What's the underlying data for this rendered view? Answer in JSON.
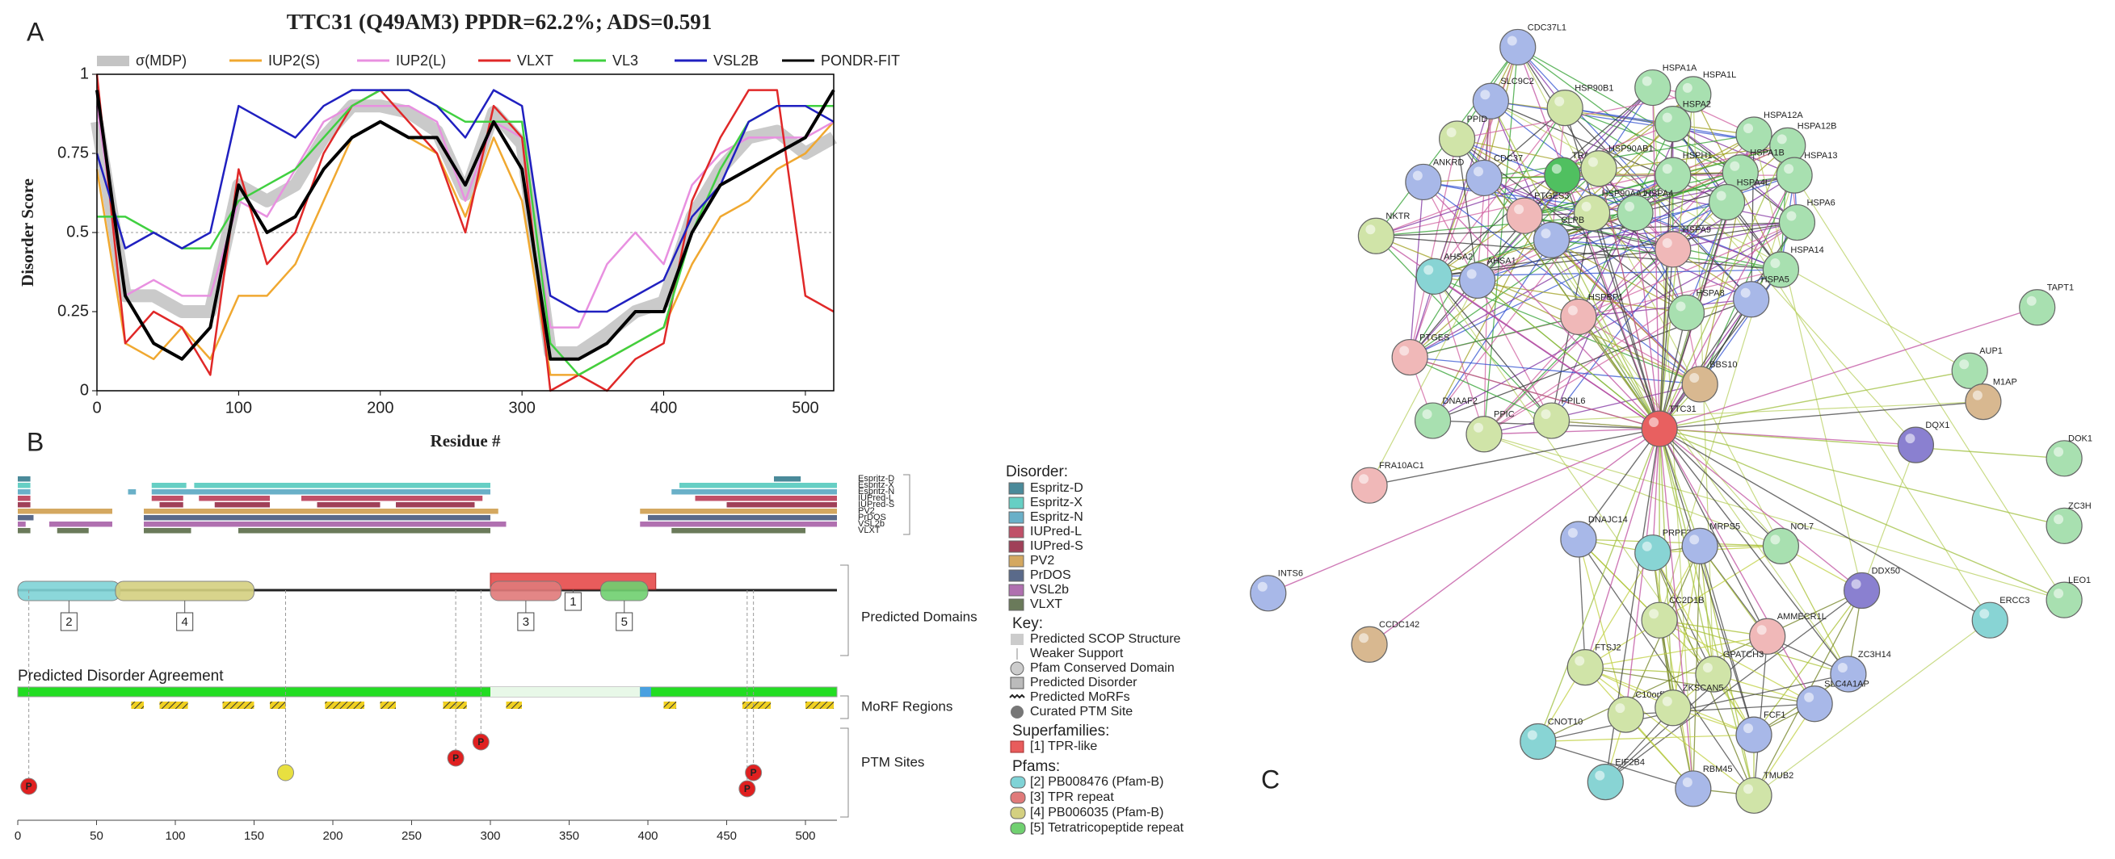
{
  "chart_data": {
    "type": "line",
    "title": "TTC31 (Q49AM3) PPDR=62.2%; ADS=0.591",
    "xlabel": "Residue #",
    "ylabel": "Disorder Score",
    "x": [
      0,
      20,
      40,
      60,
      80,
      100,
      120,
      140,
      160,
      180,
      200,
      220,
      240,
      260,
      280,
      300,
      320,
      340,
      360,
      380,
      400,
      420,
      440,
      460,
      480,
      500,
      520
    ],
    "xlim": [
      0,
      520
    ],
    "ylim": [
      0,
      1
    ],
    "xticks": [
      0,
      100,
      200,
      300,
      400,
      500
    ],
    "yticks": [
      0,
      0.25,
      0.5,
      0.75,
      1
    ],
    "reference_line": 0.5,
    "series": [
      {
        "name": "σ(MDP)",
        "color": "#c4c4c4",
        "band": true,
        "values": [
          0.85,
          0.3,
          0.3,
          0.25,
          0.25,
          0.65,
          0.6,
          0.65,
          0.8,
          0.9,
          0.9,
          0.88,
          0.82,
          0.62,
          0.88,
          0.78,
          0.12,
          0.12,
          0.18,
          0.25,
          0.28,
          0.55,
          0.7,
          0.8,
          0.82,
          0.75,
          0.8
        ]
      },
      {
        "name": "IUP2(S)",
        "color": "#f0a830",
        "values": [
          0.7,
          0.15,
          0.1,
          0.2,
          0.1,
          0.3,
          0.3,
          0.4,
          0.6,
          0.8,
          0.85,
          0.8,
          0.75,
          0.55,
          0.8,
          0.6,
          0.05,
          0.05,
          0.1,
          0.15,
          0.2,
          0.4,
          0.55,
          0.6,
          0.7,
          0.75,
          0.85
        ]
      },
      {
        "name": "IUP2(L)",
        "color": "#e890e0",
        "values": [
          0.9,
          0.3,
          0.35,
          0.3,
          0.3,
          0.6,
          0.55,
          0.7,
          0.85,
          0.9,
          0.9,
          0.9,
          0.85,
          0.6,
          0.85,
          0.8,
          0.2,
          0.2,
          0.4,
          0.5,
          0.4,
          0.65,
          0.75,
          0.8,
          0.8,
          0.8,
          0.85
        ]
      },
      {
        "name": "VLXT",
        "color": "#e02828",
        "values": [
          1,
          0.15,
          0.25,
          0.2,
          0.05,
          0.7,
          0.4,
          0.5,
          0.75,
          0.9,
          0.95,
          0.85,
          0.75,
          0.5,
          0.9,
          0.8,
          0,
          0.05,
          0,
          0.1,
          0.15,
          0.6,
          0.8,
          0.95,
          0.95,
          0.3,
          0.25
        ]
      },
      {
        "name": "VL3",
        "color": "#40d040",
        "values": [
          0.55,
          0.55,
          0.5,
          0.45,
          0.45,
          0.6,
          0.65,
          0.7,
          0.8,
          0.9,
          0.95,
          0.95,
          0.9,
          0.85,
          0.85,
          0.85,
          0.15,
          0.05,
          0.1,
          0.15,
          0.2,
          0.5,
          0.7,
          0.85,
          0.9,
          0.9,
          0.9
        ]
      },
      {
        "name": "VSL2B",
        "color": "#2020c0",
        "values": [
          0.75,
          0.45,
          0.5,
          0.45,
          0.5,
          0.9,
          0.85,
          0.8,
          0.9,
          0.95,
          0.95,
          0.95,
          0.9,
          0.8,
          0.95,
          0.9,
          0.3,
          0.25,
          0.25,
          0.3,
          0.35,
          0.55,
          0.65,
          0.85,
          0.9,
          0.9,
          0.85
        ]
      },
      {
        "name": "PONDR-FIT",
        "color": "#000000",
        "values": [
          0.95,
          0.3,
          0.15,
          0.1,
          0.2,
          0.65,
          0.5,
          0.55,
          0.7,
          0.8,
          0.85,
          0.8,
          0.8,
          0.65,
          0.85,
          0.7,
          0.1,
          0.1,
          0.15,
          0.25,
          0.25,
          0.5,
          0.65,
          0.7,
          0.75,
          0.8,
          0.95
        ]
      }
    ]
  },
  "panel_labels": [
    "A",
    "B",
    "C"
  ],
  "panel_b": {
    "xlim": [
      0,
      520
    ],
    "xticks": [
      0,
      50,
      100,
      150,
      200,
      250,
      300,
      350,
      400,
      450,
      500
    ],
    "tracks": [
      {
        "name": "Espritz-D",
        "color": "#4a8a9a",
        "segments": [
          [
            0,
            8
          ],
          [
            480,
            497
          ]
        ]
      },
      {
        "name": "Espritz-X",
        "color": "#66cfc4",
        "segments": [
          [
            0,
            8
          ],
          [
            85,
            107
          ],
          [
            112,
            300
          ],
          [
            420,
            520
          ]
        ]
      },
      {
        "name": "Espritz-N",
        "color": "#6ab0c8",
        "segments": [
          [
            0,
            8
          ],
          [
            70,
            75
          ],
          [
            85,
            300
          ],
          [
            415,
            520
          ]
        ]
      },
      {
        "name": "IUPred-L",
        "color": "#c05068",
        "segments": [
          [
            0,
            8
          ],
          [
            85,
            105
          ],
          [
            115,
            160
          ],
          [
            180,
            295
          ],
          [
            430,
            520
          ]
        ]
      },
      {
        "name": "IUPred-S",
        "color": "#a04058",
        "segments": [
          [
            0,
            8
          ],
          [
            90,
            105
          ],
          [
            125,
            160
          ],
          [
            190,
            230
          ],
          [
            240,
            290
          ],
          [
            450,
            520
          ]
        ]
      },
      {
        "name": "PV2",
        "color": "#d4a860",
        "segments": [
          [
            0,
            60
          ],
          [
            80,
            305
          ],
          [
            395,
            520
          ]
        ]
      },
      {
        "name": "PrDOS",
        "color": "#5a6a8a",
        "segments": [
          [
            0,
            10
          ],
          [
            80,
            300
          ],
          [
            400,
            520
          ]
        ]
      },
      {
        "name": "VSL2b",
        "color": "#b070b0",
        "segments": [
          [
            0,
            5
          ],
          [
            20,
            60
          ],
          [
            80,
            310
          ],
          [
            395,
            520
          ]
        ]
      },
      {
        "name": "VLXT",
        "color": "#6a7a5a",
        "segments": [
          [
            0,
            8
          ],
          [
            25,
            45
          ],
          [
            80,
            110
          ],
          [
            140,
            300
          ],
          [
            415,
            500
          ]
        ]
      }
    ],
    "brackets": [
      "Predicted Domains",
      "MoRF Regions",
      "PTM Sites"
    ],
    "agreement_label": "Predicted Disorder Agreement",
    "domains": [
      {
        "label": "2",
        "start": 0,
        "end": 65,
        "color": "#7fd3d6",
        "kind": "pfam"
      },
      {
        "label": "4",
        "start": 62,
        "end": 150,
        "color": "#d4d080",
        "kind": "pfam"
      },
      {
        "label": "1",
        "start": 300,
        "end": 405,
        "color": "#e85c5c",
        "kind": "superfamily"
      },
      {
        "label": "3",
        "start": 300,
        "end": 345,
        "color": "#e07a7a",
        "kind": "pfam"
      },
      {
        "label": "5",
        "start": 370,
        "end": 400,
        "color": "#70d070",
        "kind": "pfam"
      }
    ],
    "morfs": [
      [
        72,
        80
      ],
      [
        90,
        108
      ],
      [
        130,
        150
      ],
      [
        160,
        170
      ],
      [
        195,
        220
      ],
      [
        230,
        240
      ],
      [
        270,
        285
      ],
      [
        310,
        320
      ],
      [
        410,
        418
      ],
      [
        460,
        478
      ],
      [
        500,
        518
      ]
    ],
    "ptm": [
      {
        "pos": 7,
        "label": "P",
        "color": "#e02020"
      },
      {
        "pos": 170,
        "color": "#e8e040"
      },
      {
        "pos": 278,
        "label": "P",
        "color": "#e02020"
      },
      {
        "pos": 294,
        "label": "P",
        "color": "#e02020"
      },
      {
        "pos": 463,
        "label": "P",
        "color": "#e02020"
      },
      {
        "pos": 467,
        "label": "P",
        "color": "#e02020"
      }
    ]
  },
  "legend_b": {
    "disorder_title": "Disorder:",
    "key_title": "Key:",
    "key_items": [
      "Predicted SCOP Structure",
      "Weaker Support",
      "Pfam Conserved Domain",
      "Predicted Disorder",
      "Predicted MoRFs",
      "Curated PTM Site"
    ],
    "superfamilies_title": "Superfamilies:",
    "superfamilies": [
      {
        "label": "[1] TPR-like",
        "color": "#e85c5c"
      }
    ],
    "pfams_title": "Pfams:",
    "pfams": [
      {
        "label": "[2] PB008476 (Pfam-B)",
        "color": "#7fd3d6"
      },
      {
        "label": "[3] TPR repeat",
        "color": "#e07a7a"
      },
      {
        "label": "[4] PB006035 (Pfam-B)",
        "color": "#d4d080"
      },
      {
        "label": "[5] Tetratricopeptide repeat",
        "color": "#70d070"
      }
    ]
  },
  "network": {
    "nodes": [
      "CDC37L1",
      "SLC9C2",
      "HSP90B1",
      "HSPA1A",
      "HSPA1L",
      "HSPA2",
      "HSPA12A",
      "HSPA12B",
      "PPID",
      "ANKRD",
      "CDC37",
      "TRAP1",
      "HSP90AB1",
      "HSPH1",
      "HSPA1B",
      "HSPA13",
      "PTGES3",
      "HSP90AA1",
      "HSPA4",
      "HSPA4L",
      "HSPA6",
      "NKTR",
      "CLPB",
      "HSPA9",
      "AHSA2",
      "AHSA1",
      "HSPA14",
      "HSPA5",
      "HSPBP1",
      "HSPA8",
      "PTGES",
      "BBS10",
      "DNAAF2",
      "PPIC",
      "PPIL6",
      "TTC31",
      "TAPT1",
      "AUP1",
      "M1AP",
      "DQX1",
      "DOK1",
      "FRA10AC1",
      "INTS6",
      "ZC3H",
      "DNAJC14",
      "PRPF38A",
      "MRPS5",
      "NOL7",
      "DDX50",
      "LEO1",
      "ERCC3",
      "CCDC142",
      "CC2D1B",
      "AMMECR1L",
      "FTSJ2",
      "GPATCH3",
      "ZC3H14",
      "C10orf76",
      "ZKSCAN5",
      "FCF1",
      "SLC4A1AP",
      "CNOT10",
      "EIF2B4",
      "RBM45",
      "TMUB2"
    ]
  }
}
